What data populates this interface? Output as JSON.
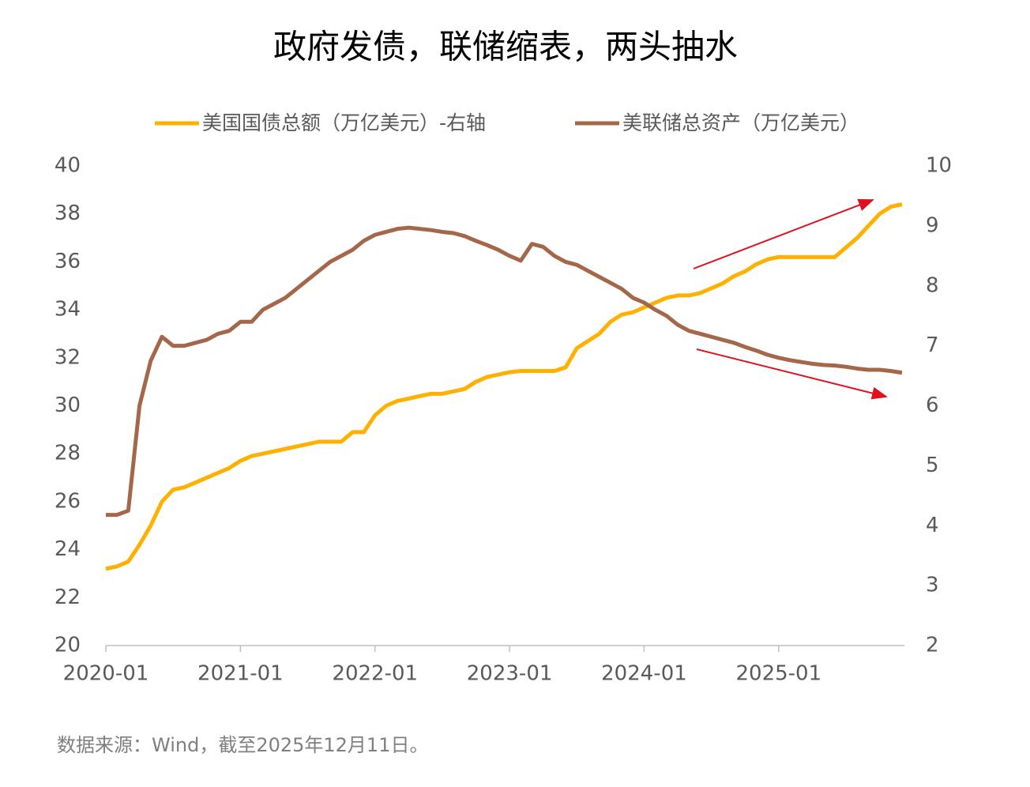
{
  "chart_data": {
    "type": "line",
    "title": "政府发债，联储缩表，两头抽水",
    "source": "数据来源：Wind，截至2025年12月11日。",
    "x": [
      "2020-01",
      "2020-02",
      "2020-03",
      "2020-04",
      "2020-05",
      "2020-06",
      "2020-07",
      "2020-08",
      "2020-09",
      "2020-10",
      "2020-11",
      "2020-12",
      "2021-01",
      "2021-02",
      "2021-03",
      "2021-04",
      "2021-05",
      "2021-06",
      "2021-07",
      "2021-08",
      "2021-09",
      "2021-10",
      "2021-11",
      "2021-12",
      "2022-01",
      "2022-02",
      "2022-03",
      "2022-04",
      "2022-05",
      "2022-06",
      "2022-07",
      "2022-08",
      "2022-09",
      "2022-10",
      "2022-11",
      "2022-12",
      "2023-01",
      "2023-02",
      "2023-03",
      "2023-04",
      "2023-05",
      "2023-06",
      "2023-07",
      "2023-08",
      "2023-09",
      "2023-10",
      "2023-11",
      "2023-12",
      "2024-01",
      "2024-02",
      "2024-03",
      "2024-04",
      "2024-05",
      "2024-06",
      "2024-07",
      "2024-08",
      "2024-09",
      "2024-10",
      "2024-11",
      "2024-12",
      "2025-01",
      "2025-02",
      "2025-03",
      "2025-04",
      "2025-05",
      "2025-06",
      "2025-07",
      "2025-08",
      "2025-09",
      "2025-10",
      "2025-11",
      "2025-12"
    ],
    "series": [
      {
        "name": "美国国债总额（万亿美元）-右轴",
        "color": "#ffb000",
        "axis": "y",
        "values": [
          23.2,
          23.3,
          23.5,
          24.2,
          25.0,
          26.0,
          26.5,
          26.6,
          26.8,
          27.0,
          27.2,
          27.4,
          27.7,
          27.9,
          28.0,
          28.1,
          28.2,
          28.3,
          28.4,
          28.5,
          28.5,
          28.5,
          28.9,
          28.9,
          29.6,
          30.0,
          30.2,
          30.3,
          30.4,
          30.5,
          30.5,
          30.6,
          30.7,
          31.0,
          31.2,
          31.3,
          31.4,
          31.45,
          31.45,
          31.45,
          31.45,
          31.6,
          32.4,
          32.7,
          33.0,
          33.5,
          33.8,
          33.9,
          34.1,
          34.3,
          34.5,
          34.6,
          34.6,
          34.7,
          34.9,
          35.1,
          35.4,
          35.6,
          35.9,
          36.1,
          36.2,
          36.2,
          36.2,
          36.2,
          36.2,
          36.2,
          36.6,
          37.0,
          37.5,
          38.0,
          38.3,
          38.4
        ]
      },
      {
        "name": "美联储总资产（万亿美元）",
        "color": "#a5674a",
        "axis": "y2",
        "values": [
          4.18,
          4.18,
          4.25,
          6.0,
          6.75,
          7.15,
          7.0,
          7.0,
          7.05,
          7.1,
          7.2,
          7.25,
          7.4,
          7.4,
          7.6,
          7.7,
          7.8,
          7.95,
          8.1,
          8.25,
          8.4,
          8.5,
          8.6,
          8.75,
          8.85,
          8.9,
          8.95,
          8.97,
          8.95,
          8.93,
          8.9,
          8.88,
          8.83,
          8.75,
          8.68,
          8.6,
          8.5,
          8.42,
          8.7,
          8.65,
          8.5,
          8.4,
          8.35,
          8.25,
          8.15,
          8.05,
          7.95,
          7.8,
          7.72,
          7.6,
          7.5,
          7.35,
          7.25,
          7.2,
          7.15,
          7.1,
          7.05,
          6.98,
          6.92,
          6.85,
          6.8,
          6.76,
          6.73,
          6.7,
          6.68,
          6.67,
          6.65,
          6.62,
          6.6,
          6.6,
          6.58,
          6.55
        ]
      }
    ],
    "xlim": [
      "2020-01",
      "2025-12"
    ],
    "xticks": [
      "2020-01",
      "2021-01",
      "2022-01",
      "2023-01",
      "2024-01",
      "2025-01"
    ],
    "ylim": [
      20,
      40
    ],
    "yticks": [
      20,
      22,
      24,
      26,
      28,
      30,
      32,
      34,
      36,
      38,
      40
    ],
    "y2lim": [
      2,
      10
    ],
    "y2ticks": [
      2,
      3,
      4,
      5,
      6,
      7,
      8,
      9,
      10
    ],
    "grid": false
  }
}
